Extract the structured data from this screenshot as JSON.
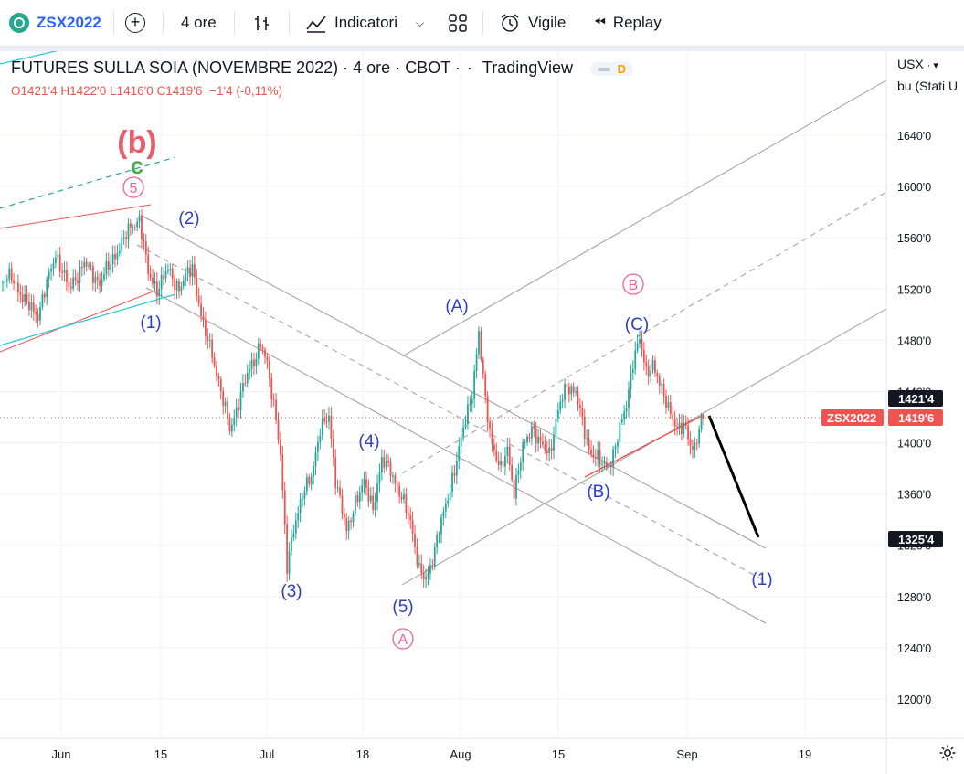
{
  "toolbar": {
    "symbol": "ZSX2022",
    "interval": "4 ore",
    "indicators": "Indicatori",
    "alert": "Vigile",
    "replay": "Replay"
  },
  "legend": {
    "title": "FUTURES SULLA SOIA (NOVEMBRE 2022)",
    "interval": "4 ore",
    "exchange": "CBOT",
    "source": "TradingView",
    "badge": "D",
    "ohlc": {
      "o_label": "O",
      "o": "1421'4",
      "h_label": "H",
      "h": "1422'0",
      "l_label": "L",
      "l": "1416'0",
      "c_label": "C",
      "c": "1419'6",
      "change": "−1'4 (-0,11%)"
    }
  },
  "scale": {
    "currency": "USX",
    "unit": "bu (Stati U"
  },
  "colors": {
    "up": "#26a69a",
    "down": "#ef5350",
    "blue_label": "#2e3ec2",
    "pink_label": "#f06292",
    "green_label": "#4caf50",
    "channel": "#9e9e9e"
  },
  "chart_data": {
    "type": "candlestick",
    "title": "FUTURES SULLA SOIA (NOVEMBRE 2022)",
    "ylim": [
      1175,
      1678
    ],
    "y_ticks": [
      1640,
      1600,
      1560,
      1520,
      1480,
      1440,
      1400,
      1360,
      1320,
      1280,
      1240,
      1200
    ],
    "y_tick_labels": [
      "1640'0",
      "1600'0",
      "1560'0",
      "1520'0",
      "1480'0",
      "1440'0",
      "1400'0",
      "1360'0",
      "1320'0",
      "1280'0",
      "1240'0",
      "1200'0"
    ],
    "x_tick_labels": [
      "Jun",
      "15",
      "Jul",
      "18",
      "Aug",
      "15",
      "Sep",
      "19"
    ],
    "price_markers": [
      {
        "label": "1421'4",
        "value": 1421.5,
        "kind": "open"
      },
      {
        "label": "1419'6",
        "value": 1419.75,
        "kind": "current",
        "symbol": "ZSX2022"
      },
      {
        "label": "1325'4",
        "value": 1325.5,
        "kind": "target"
      }
    ],
    "wave_labels": [
      {
        "text": "(b)",
        "style": "pink-big"
      },
      {
        "text": "c",
        "style": "green"
      },
      {
        "text": "5",
        "style": "pink-circle"
      },
      {
        "text": "(2)",
        "style": "blue"
      },
      {
        "text": "(1)",
        "style": "blue"
      },
      {
        "text": "(3)",
        "style": "blue"
      },
      {
        "text": "(4)",
        "style": "blue"
      },
      {
        "text": "(5)",
        "style": "blue"
      },
      {
        "text": "A",
        "style": "pink-circle"
      },
      {
        "text": "(A)",
        "style": "blue"
      },
      {
        "text": "B",
        "style": "pink-circle"
      },
      {
        "text": "(C)",
        "style": "blue"
      },
      {
        "text": "(B)",
        "style": "blue"
      },
      {
        "text": "(1)",
        "style": "blue"
      }
    ],
    "path": [
      [
        0,
        1525
      ],
      [
        4,
        1530
      ],
      [
        10,
        1510
      ],
      [
        16,
        1500
      ],
      [
        24,
        1548
      ],
      [
        30,
        1520
      ],
      [
        37,
        1540
      ],
      [
        44,
        1525
      ],
      [
        52,
        1550
      ],
      [
        58,
        1568
      ],
      [
        62,
        1575
      ],
      [
        66,
        1532
      ],
      [
        70,
        1520
      ],
      [
        75,
        1535
      ],
      [
        80,
        1520
      ],
      [
        86,
        1538
      ],
      [
        91,
        1490
      ],
      [
        95,
        1470
      ],
      [
        99,
        1440
      ],
      [
        103,
        1410
      ],
      [
        107,
        1432
      ],
      [
        112,
        1458
      ],
      [
        117,
        1477
      ],
      [
        120,
        1460
      ],
      [
        124,
        1420
      ],
      [
        126,
        1390
      ],
      [
        129,
        1302
      ],
      [
        132,
        1335
      ],
      [
        136,
        1358
      ],
      [
        140,
        1375
      ],
      [
        144,
        1410
      ],
      [
        148,
        1420
      ],
      [
        151,
        1372
      ],
      [
        156,
        1330
      ],
      [
        160,
        1355
      ],
      [
        164,
        1368
      ],
      [
        168,
        1350
      ],
      [
        172,
        1385
      ],
      [
        176,
        1380
      ],
      [
        180,
        1360
      ],
      [
        185,
        1340
      ],
      [
        189,
        1300
      ],
      [
        192,
        1292
      ],
      [
        195,
        1310
      ],
      [
        198,
        1333
      ],
      [
        201,
        1350
      ],
      [
        205,
        1380
      ],
      [
        209,
        1410
      ],
      [
        213,
        1440
      ],
      [
        216,
        1485
      ],
      [
        219,
        1432
      ],
      [
        222,
        1400
      ],
      [
        226,
        1378
      ],
      [
        229,
        1395
      ],
      [
        232,
        1362
      ],
      [
        236,
        1395
      ],
      [
        240,
        1413
      ],
      [
        244,
        1398
      ],
      [
        248,
        1392
      ],
      [
        252,
        1425
      ],
      [
        256,
        1445
      ],
      [
        260,
        1440
      ],
      [
        263,
        1415
      ],
      [
        266,
        1395
      ],
      [
        270,
        1388
      ],
      [
        273,
        1380
      ],
      [
        276,
        1386
      ],
      [
        280,
        1410
      ],
      [
        283,
        1430
      ],
      [
        286,
        1465
      ],
      [
        289,
        1480
      ],
      [
        292,
        1455
      ],
      [
        295,
        1462
      ],
      [
        299,
        1440
      ],
      [
        303,
        1425
      ],
      [
        306,
        1410
      ],
      [
        310,
        1412
      ],
      [
        312,
        1400
      ],
      [
        314,
        1395
      ],
      [
        316,
        1410
      ],
      [
        318,
        1420
      ]
    ]
  }
}
